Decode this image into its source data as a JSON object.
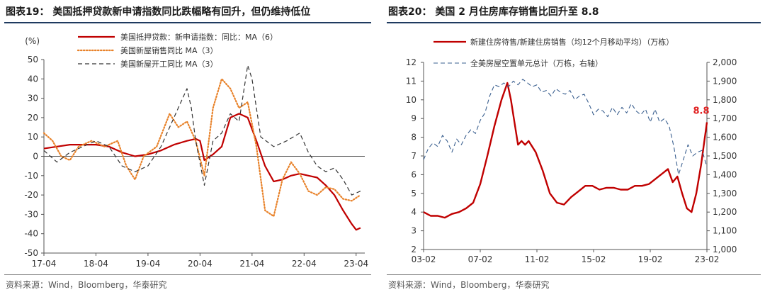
{
  "left": {
    "title": "图表19： 美国抵押贷款新申请指数同比跌幅略有回升，但仍维持低位",
    "source": "资料来源：Wind，Bloomberg，华泰研究",
    "chart_data": {
      "type": "line",
      "y_unit_label": "(%)",
      "ylim": [
        -50,
        50
      ],
      "yticks": [
        -50,
        -40,
        -30,
        -20,
        -10,
        0,
        10,
        20,
        30,
        40,
        50
      ],
      "x_range": [
        "2017-04",
        "2023-06"
      ],
      "xticks": [
        "17-04",
        "18-04",
        "19-04",
        "20-04",
        "21-04",
        "22-04",
        "23-04"
      ],
      "grid": false,
      "legend_position": "top-left",
      "series": [
        {
          "name": "美国抵押贷款：新申请指数：同比：MA（6）",
          "color": "#c00000",
          "style": "solid",
          "x": [
            "2017-04",
            "2017-07",
            "2017-10",
            "2018-01",
            "2018-04",
            "2018-07",
            "2018-10",
            "2019-01",
            "2019-04",
            "2019-07",
            "2019-10",
            "2020-01",
            "2020-03",
            "2020-04",
            "2020-05",
            "2020-07",
            "2020-09",
            "2020-11",
            "2021-01",
            "2021-03",
            "2021-05",
            "2021-07",
            "2021-09",
            "2021-11",
            "2022-01",
            "2022-03",
            "2022-05",
            "2022-07",
            "2022-09",
            "2022-11",
            "2023-01",
            "2023-03",
            "2023-04",
            "2023-05"
          ],
          "values": [
            4,
            5,
            6,
            6,
            6,
            5,
            2,
            0,
            1,
            3,
            6,
            8,
            9,
            8,
            -2,
            1,
            5,
            20,
            22,
            20,
            8,
            -5,
            -13,
            -12,
            -10,
            -9,
            -10,
            -11,
            -15,
            -20,
            -28,
            -35,
            -38,
            -37
          ]
        },
        {
          "name": "美国新屋销售同比 MA（3）",
          "color": "#e8822a",
          "style": "dotted",
          "x": [
            "2017-04",
            "2017-06",
            "2017-08",
            "2017-10",
            "2017-12",
            "2018-03",
            "2018-06",
            "2018-09",
            "2018-11",
            "2019-01",
            "2019-03",
            "2019-06",
            "2019-09",
            "2019-11",
            "2020-01",
            "2020-03",
            "2020-05",
            "2020-07",
            "2020-09",
            "2020-11",
            "2021-01",
            "2021-03",
            "2021-05",
            "2021-07",
            "2021-09",
            "2021-11",
            "2022-01",
            "2022-03",
            "2022-05",
            "2022-07",
            "2022-09",
            "2022-11",
            "2023-01",
            "2023-03",
            "2023-05"
          ],
          "values": [
            12,
            8,
            0,
            -2,
            5,
            8,
            5,
            8,
            -5,
            -12,
            0,
            5,
            22,
            15,
            18,
            8,
            -10,
            25,
            40,
            35,
            25,
            28,
            5,
            -28,
            -31,
            -12,
            -3,
            -9,
            -18,
            -20,
            -16,
            -17,
            -22,
            -23,
            -20
          ]
        },
        {
          "name": "美国新屋开工同比 MA（3）",
          "color": "#333333",
          "style": "dashed",
          "x": [
            "2017-04",
            "2017-07",
            "2017-10",
            "2018-01",
            "2018-04",
            "2018-07",
            "2018-10",
            "2019-01",
            "2019-04",
            "2019-07",
            "2019-10",
            "2020-01",
            "2020-02",
            "2020-03",
            "2020-05",
            "2020-07",
            "2020-09",
            "2020-11",
            "2021-01",
            "2021-03",
            "2021-04",
            "2021-06",
            "2021-09",
            "2021-12",
            "2022-03",
            "2022-05",
            "2022-07",
            "2022-09",
            "2022-11",
            "2023-01",
            "2023-03",
            "2023-05"
          ],
          "values": [
            3,
            -3,
            2,
            5,
            8,
            5,
            -5,
            -8,
            -5,
            5,
            20,
            35,
            25,
            8,
            -15,
            8,
            12,
            22,
            18,
            47,
            40,
            10,
            5,
            8,
            12,
            2,
            -5,
            -8,
            -6,
            -12,
            -20,
            -18
          ]
        }
      ]
    }
  },
  "right": {
    "title": "图表20： 美国 2 月住房库存销售比回升至 8.8",
    "source": "资料来源：Wind，Bloomberg，华泰研究",
    "chart_data": {
      "type": "line",
      "ylim_left": [
        2,
        12
      ],
      "yticks_left": [
        2,
        3,
        4,
        5,
        6,
        7,
        8,
        9,
        10,
        11,
        12
      ],
      "ylim_right": [
        1000,
        2000
      ],
      "yticks_right": [
        "1,000",
        "1,100",
        "1,200",
        "1,300",
        "1,400",
        "1,500",
        "1,600",
        "1,700",
        "1,800",
        "1,900",
        "2,000"
      ],
      "x_range": [
        "2003-02",
        "2023-02"
      ],
      "xticks": [
        "03-02",
        "07-02",
        "11-02",
        "15-02",
        "19-02",
        "23-02"
      ],
      "grid": false,
      "legend_position": "top",
      "annotation": {
        "text": "8.8",
        "x": "2023-02",
        "value": 8.8,
        "color": "#e02020"
      },
      "series": [
        {
          "name": "新建住房待售/新建住房销售（均12个月移动平均）（万栋）",
          "axis": "left",
          "color": "#c00000",
          "style": "solid",
          "x": [
            "2003-02",
            "2003-08",
            "2004-02",
            "2004-08",
            "2005-02",
            "2005-08",
            "2006-02",
            "2006-08",
            "2007-02",
            "2007-08",
            "2008-02",
            "2008-08",
            "2009-01",
            "2009-04",
            "2009-07",
            "2009-10",
            "2010-01",
            "2010-04",
            "2010-07",
            "2011-01",
            "2011-07",
            "2012-01",
            "2012-07",
            "2013-01",
            "2013-07",
            "2014-01",
            "2014-07",
            "2015-01",
            "2015-07",
            "2016-01",
            "2016-07",
            "2017-01",
            "2017-07",
            "2018-01",
            "2018-07",
            "2019-01",
            "2019-07",
            "2020-01",
            "2020-05",
            "2020-09",
            "2021-01",
            "2021-05",
            "2021-09",
            "2022-01",
            "2022-05",
            "2022-09",
            "2023-02"
          ],
          "values": [
            4.0,
            3.8,
            3.8,
            3.7,
            3.9,
            4.0,
            4.2,
            4.5,
            5.5,
            7.0,
            8.6,
            10.0,
            10.9,
            10.0,
            8.8,
            7.6,
            7.8,
            7.6,
            7.8,
            7.2,
            6.2,
            5.0,
            4.5,
            4.4,
            4.8,
            5.1,
            5.4,
            5.4,
            5.2,
            5.3,
            5.3,
            5.2,
            5.2,
            5.4,
            5.4,
            5.5,
            5.8,
            6.1,
            6.3,
            5.6,
            5.9,
            5.0,
            4.2,
            4.0,
            5.0,
            6.5,
            8.8
          ]
        },
        {
          "name": "全美房屋空置单元总计（万栋，右轴）",
          "axis": "right",
          "color": "#3a5f8f",
          "style": "dashed",
          "x": [
            "2003-02",
            "2003-06",
            "2003-10",
            "2004-02",
            "2004-06",
            "2004-10",
            "2005-02",
            "2005-06",
            "2005-10",
            "2006-02",
            "2006-06",
            "2006-10",
            "2007-02",
            "2007-06",
            "2007-10",
            "2008-02",
            "2008-06",
            "2008-10",
            "2009-02",
            "2009-06",
            "2009-10",
            "2010-02",
            "2010-06",
            "2010-10",
            "2011-02",
            "2011-06",
            "2011-10",
            "2012-02",
            "2012-06",
            "2012-10",
            "2013-02",
            "2013-06",
            "2013-10",
            "2014-02",
            "2014-06",
            "2014-10",
            "2015-02",
            "2015-06",
            "2015-10",
            "2016-02",
            "2016-06",
            "2016-10",
            "2017-02",
            "2017-06",
            "2017-10",
            "2018-02",
            "2018-06",
            "2018-10",
            "2019-02",
            "2019-06",
            "2019-10",
            "2020-02",
            "2020-06",
            "2020-10",
            "2021-02",
            "2021-06",
            "2021-10",
            "2022-02",
            "2022-06",
            "2022-10",
            "2023-02"
          ],
          "values": [
            1480,
            1540,
            1570,
            1550,
            1610,
            1580,
            1520,
            1590,
            1560,
            1610,
            1640,
            1620,
            1690,
            1730,
            1820,
            1880,
            1870,
            1890,
            1870,
            1900,
            1880,
            1910,
            1890,
            1870,
            1880,
            1840,
            1850,
            1820,
            1860,
            1840,
            1830,
            1850,
            1800,
            1820,
            1830,
            1780,
            1720,
            1750,
            1740,
            1710,
            1760,
            1720,
            1760,
            1730,
            1780,
            1740,
            1720,
            1750,
            1680,
            1750,
            1680,
            1700,
            1660,
            1550,
            1400,
            1480,
            1560,
            1500,
            1520,
            1530,
            1440
          ]
        }
      ]
    }
  }
}
